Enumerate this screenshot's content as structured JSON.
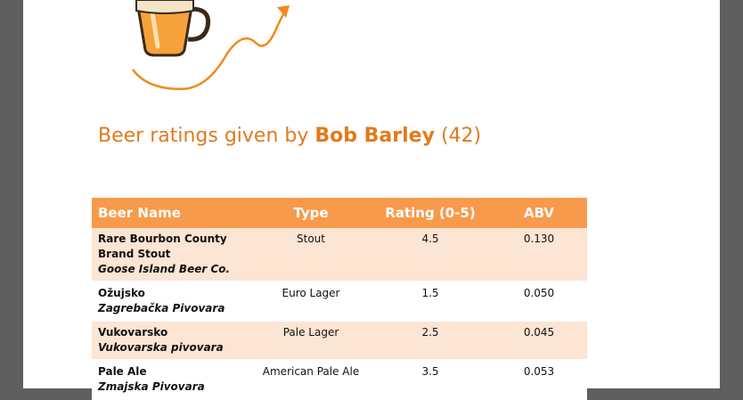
{
  "heading": {
    "prefix": "Beer ratings given by ",
    "user": "Bob Barley",
    "count": "(42)"
  },
  "table": {
    "headers": [
      "Beer Name",
      "Type",
      "Rating (0-5)",
      "ABV"
    ],
    "rows": [
      {
        "name": "Rare Bourbon County Brand Stout",
        "brewery": "Goose Island Beer Co.",
        "type": "Stout",
        "rating": "4.5",
        "abv": "0.130"
      },
      {
        "name": "Ožujsko",
        "brewery": "Zagrebačka Pivovara",
        "type": "Euro Lager",
        "rating": "1.5",
        "abv": "0.050"
      },
      {
        "name": "Vukovarsko",
        "brewery": "Vukovarska pivovara",
        "type": "Pale Lager",
        "rating": "2.5",
        "abv": "0.045"
      },
      {
        "name": "Pale Ale",
        "brewery": "Zmajska Pivovara",
        "type": "American Pale Ale",
        "rating": "3.5",
        "abv": "0.053"
      }
    ]
  },
  "colors": {
    "accent": "#e07b1f",
    "header_bg": "#f79a4b",
    "row_alt": "#fce5d3"
  }
}
